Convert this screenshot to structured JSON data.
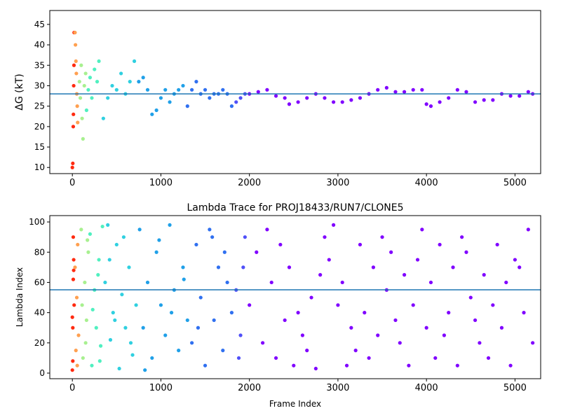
{
  "chart_data": [
    {
      "type": "scatter",
      "ylabel": "ΔG (kT)",
      "xlim": [
        -255,
        5290
      ],
      "ylim": [
        8.5,
        48.4
      ],
      "xticks": [
        0,
        1000,
        2000,
        3000,
        4000,
        5000
      ],
      "yticks": [
        10,
        15,
        20,
        25,
        30,
        35,
        40,
        45
      ],
      "hline": 28.0,
      "hline_color": "#1f77b4",
      "series": [
        {
          "color": "#ff2a10",
          "x": [
            0,
            5,
            10,
            12,
            15,
            18,
            20
          ],
          "values": [
            10,
            11,
            20,
            23,
            30,
            35,
            43
          ]
        },
        {
          "color": "#ffa050",
          "x": [
            30,
            35,
            40,
            45,
            50,
            55,
            60
          ],
          "values": [
            43,
            40,
            36,
            33,
            28,
            25,
            21
          ]
        },
        {
          "color": "#a8f090",
          "x": [
            80,
            90,
            100,
            110,
            120,
            135,
            150
          ],
          "values": [
            31,
            27,
            35,
            22,
            17,
            30,
            33
          ]
        },
        {
          "color": "#50f0c0",
          "x": [
            160,
            180,
            200,
            220,
            250,
            280,
            300
          ],
          "values": [
            24,
            29,
            32,
            27,
            34,
            31,
            36
          ]
        },
        {
          "color": "#30d0e0",
          "x": [
            350,
            400,
            450,
            500,
            550,
            600,
            650,
            700
          ],
          "values": [
            22,
            27,
            30,
            29,
            33,
            28,
            31,
            36
          ]
        },
        {
          "color": "#20a0e8",
          "x": [
            750,
            800,
            850,
            900,
            950,
            1000,
            1050,
            1100,
            1150,
            1200,
            1250
          ],
          "values": [
            31,
            32,
            29,
            23,
            24,
            27,
            29,
            26,
            28,
            29,
            30
          ]
        },
        {
          "color": "#3070f0",
          "x": [
            1300,
            1350,
            1400,
            1450,
            1500,
            1550,
            1600,
            1650,
            1700,
            1750,
            1800
          ],
          "values": [
            25,
            29,
            31,
            28,
            29,
            27,
            28,
            28,
            29,
            28,
            25
          ]
        },
        {
          "color": "#5050f8",
          "x": [
            1850,
            1900,
            1950
          ],
          "values": [
            26,
            27,
            28
          ]
        },
        {
          "color": "#8000ff",
          "x": [
            2000,
            2100,
            2200,
            2300,
            2400,
            2450,
            2550,
            2650,
            2750,
            2850,
            2950,
            3050,
            3150,
            3250,
            3350,
            3450,
            3550,
            3650,
            3750,
            3850,
            3950,
            4000,
            4050,
            4150,
            4250,
            4350,
            4450,
            4550,
            4650,
            4750,
            4850,
            4950,
            5050,
            5150,
            5200
          ],
          "values": [
            28,
            28.5,
            29,
            27.5,
            27,
            25.5,
            26,
            27,
            28,
            27,
            26,
            26,
            26.5,
            27,
            28,
            29,
            29.5,
            28.5,
            28.5,
            29,
            29,
            25.5,
            25,
            26,
            27,
            29,
            28.5,
            26,
            26.5,
            26.5,
            28,
            27.5,
            27.5,
            28.5,
            28
          ]
        }
      ]
    },
    {
      "type": "scatter",
      "title": "Lambda Trace for PROJ18433/RUN7/CLONE5",
      "xlabel": "Frame Index",
      "ylabel": "Lambda Index",
      "xlim": [
        -255,
        5290
      ],
      "ylim": [
        -3.7,
        104.2
      ],
      "xticks": [
        0,
        1000,
        2000,
        3000,
        4000,
        5000
      ],
      "yticks": [
        0,
        20,
        40,
        60,
        80,
        100
      ],
      "hline": 55.1,
      "hline_color": "#1f77b4",
      "series": [
        {
          "color": "#ff2a10",
          "x": [
            0,
            5,
            10,
            15,
            20,
            5,
            10,
            0,
            15
          ],
          "values": [
            2,
            30,
            62,
            75,
            45,
            8,
            90,
            37,
            68
          ]
        },
        {
          "color": "#ffa050",
          "x": [
            40,
            50,
            60,
            70,
            30,
            55
          ],
          "values": [
            15,
            50,
            85,
            25,
            70,
            5
          ]
        },
        {
          "color": "#a8f090",
          "x": [
            100,
            120,
            140,
            160,
            180,
            110,
            150,
            170
          ],
          "values": [
            95,
            10,
            60,
            35,
            80,
            45,
            20,
            88
          ]
        },
        {
          "color": "#50f0c0",
          "x": [
            200,
            220,
            250,
            270,
            300,
            320,
            340,
            230,
            290,
            310
          ],
          "values": [
            92,
            5,
            55,
            30,
            75,
            18,
            97,
            42,
            65,
            8
          ]
        },
        {
          "color": "#30d0e0",
          "x": [
            370,
            400,
            430,
            460,
            500,
            530,
            560,
            600,
            640,
            680,
            720,
            420,
            480,
            580,
            660
          ],
          "values": [
            60,
            98,
            22,
            40,
            85,
            3,
            52,
            30,
            70,
            12,
            45,
            75,
            35,
            90,
            20
          ]
        },
        {
          "color": "#20a0e8",
          "x": [
            760,
            800,
            850,
            900,
            950,
            1000,
            1050,
            1100,
            1150,
            1200,
            1250,
            1300,
            820,
            980,
            1120,
            1260
          ],
          "values": [
            95,
            30,
            60,
            10,
            80,
            45,
            25,
            98,
            55,
            15,
            70,
            35,
            2,
            88,
            40,
            62
          ]
        },
        {
          "color": "#3070f0",
          "x": [
            1350,
            1400,
            1450,
            1500,
            1550,
            1600,
            1650,
            1700,
            1750,
            1800,
            1420,
            1580,
            1720
          ],
          "values": [
            20,
            85,
            50,
            5,
            95,
            35,
            70,
            15,
            60,
            40,
            30,
            90,
            80
          ]
        },
        {
          "color": "#5050f8",
          "x": [
            1850,
            1900,
            1950,
            1880,
            1930
          ],
          "values": [
            55,
            25,
            90,
            10,
            70
          ]
        },
        {
          "color": "#8000ff",
          "x": [
            2000,
            2080,
            2150,
            2200,
            2250,
            2300,
            2350,
            2400,
            2450,
            2500,
            2550,
            2600,
            2650,
            2700,
            2750,
            2800,
            2850,
            2900,
            2950,
            3000,
            3050,
            3100,
            3150,
            3200,
            3250,
            3300,
            3350,
            3400,
            3450,
            3500,
            3550,
            3600,
            3650,
            3700,
            3750,
            3800,
            3850,
            3900,
            3950,
            4000,
            4050,
            4100,
            4150,
            4200,
            4250,
            4300,
            4350,
            4400,
            4450,
            4500,
            4550,
            4600,
            4650,
            4700,
            4750,
            4800,
            4850,
            4900,
            4950,
            5000,
            5050,
            5100,
            5150,
            5200
          ],
          "values": [
            45,
            80,
            20,
            95,
            60,
            10,
            85,
            35,
            70,
            5,
            40,
            25,
            15,
            50,
            3,
            65,
            90,
            75,
            98,
            45,
            60,
            5,
            30,
            15,
            85,
            40,
            10,
            70,
            25,
            90,
            55,
            80,
            35,
            20,
            65,
            5,
            45,
            75,
            95,
            30,
            60,
            10,
            85,
            25,
            40,
            70,
            5,
            90,
            80,
            50,
            35,
            20,
            65,
            10,
            45,
            85,
            30,
            60,
            5,
            75,
            70,
            40,
            95,
            20
          ]
        }
      ]
    }
  ]
}
